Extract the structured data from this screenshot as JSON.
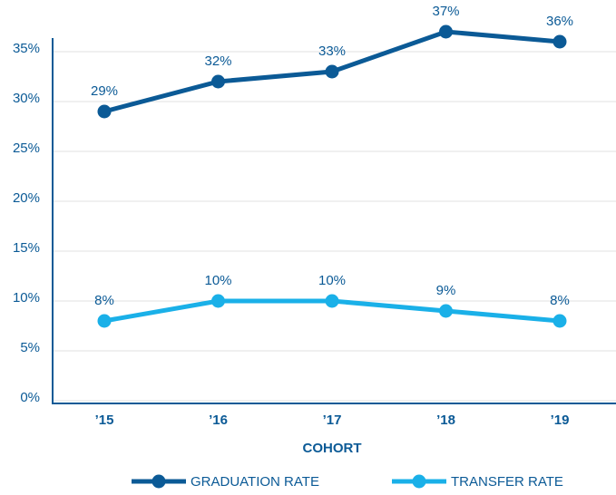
{
  "chart_data": {
    "type": "line",
    "categories": [
      "’15",
      "’16",
      "’17",
      "’18",
      "’19"
    ],
    "x_label": "COHORT",
    "series": [
      {
        "name": "GRADUATION RATE",
        "color": "#0b5a96",
        "values": [
          29,
          32,
          33,
          37,
          36
        ],
        "value_labels": [
          "29%",
          "32%",
          "33%",
          "37%",
          "36%"
        ]
      },
      {
        "name": "TRANSFER RATE",
        "color": "#1ab0e8",
        "values": [
          8,
          10,
          10,
          9,
          8
        ],
        "value_labels": [
          "8%",
          "10%",
          "10%",
          "9%",
          "8%"
        ]
      }
    ],
    "ylim": [
      0,
      35
    ],
    "yticks": [
      {
        "value": 0,
        "label": "0%"
      },
      {
        "value": 5,
        "label": "5%"
      },
      {
        "value": 10,
        "label": "10%"
      },
      {
        "value": 15,
        "label": "15%"
      },
      {
        "value": 20,
        "label": "20%"
      },
      {
        "value": 25,
        "label": "25%"
      },
      {
        "value": 30,
        "label": "30%"
      },
      {
        "value": 35,
        "label": "35%"
      }
    ],
    "grid": true,
    "legend": "bottom"
  }
}
